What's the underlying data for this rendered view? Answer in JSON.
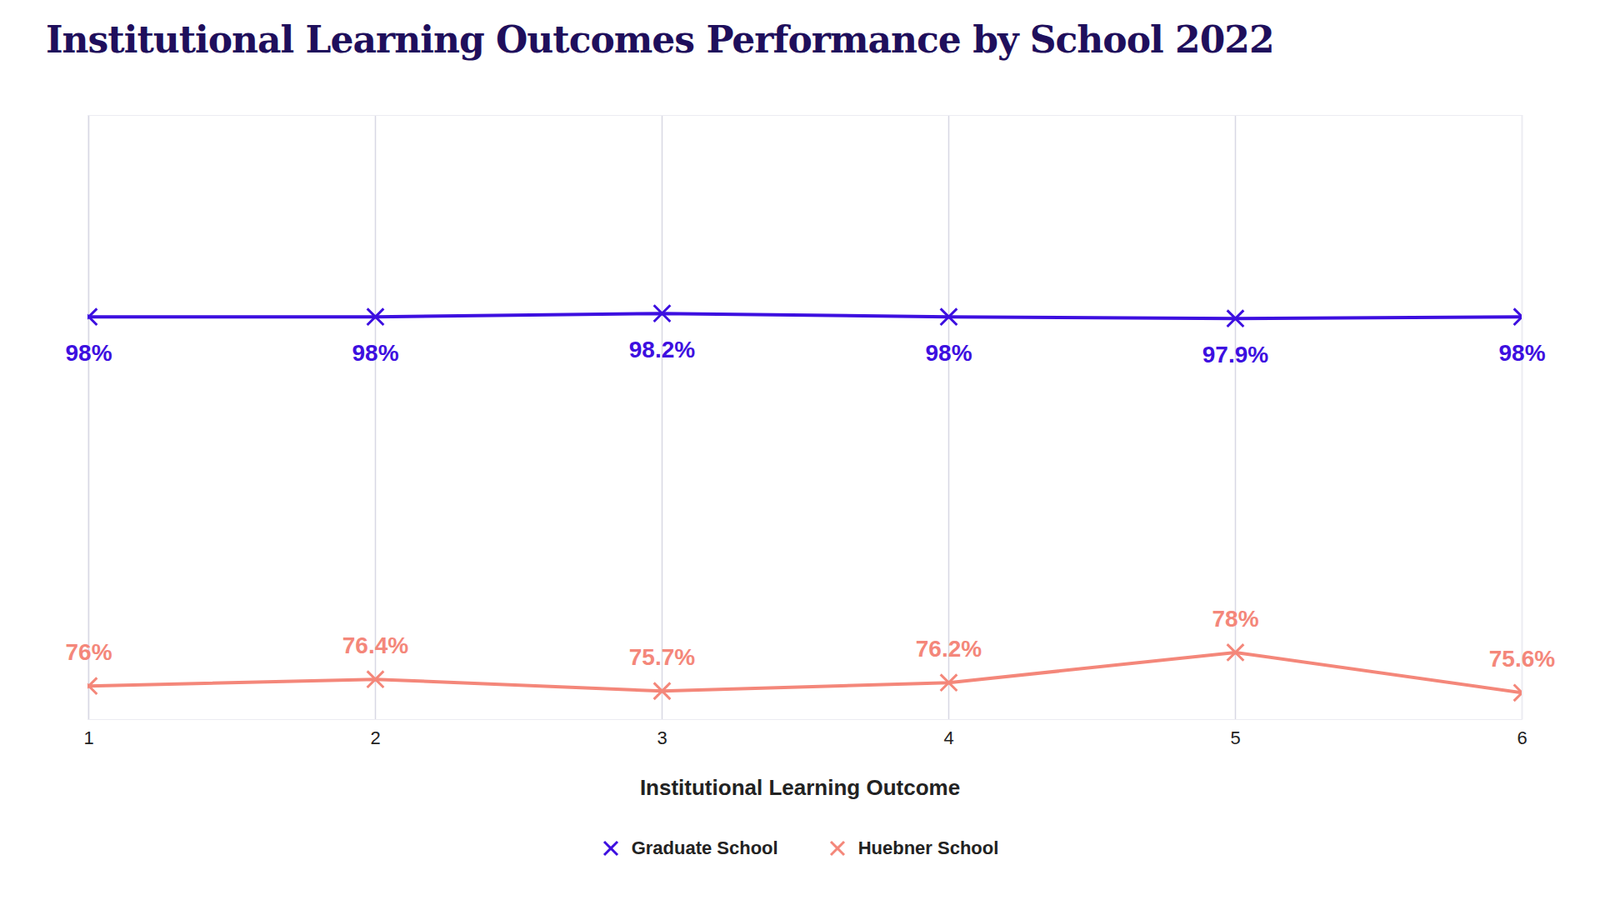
{
  "chart_data": {
    "type": "line",
    "title": "Institutional Learning Outcomes Performance by School 2022",
    "x_label": "Institutional Learning Outcome",
    "categories": [
      "1",
      "2",
      "3",
      "4",
      "5",
      "6"
    ],
    "series": [
      {
        "name": "Graduate School",
        "color": "#3d0fe0",
        "marker": "x",
        "values": [
          98,
          98,
          98.2,
          98,
          97.9,
          98
        ],
        "value_labels": [
          "98%",
          "98%",
          "98.2%",
          "98%",
          "97.9%",
          "98%"
        ]
      },
      {
        "name": "Huebner School",
        "color": "#f4877a",
        "marker": "x",
        "values": [
          76,
          76.4,
          75.7,
          76.2,
          78,
          75.6
        ],
        "value_labels": [
          "76%",
          "76.4%",
          "75.7%",
          "76.2%",
          "78%",
          "75.6%"
        ]
      }
    ],
    "ylim": [
      74,
      110
    ],
    "yticks": [],
    "grid": true,
    "data_labels": true,
    "tick_labels": "x"
  }
}
